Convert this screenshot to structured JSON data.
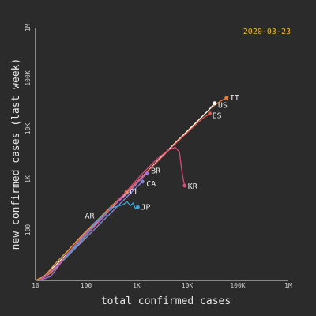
{
  "chart_data": {
    "type": "line",
    "title": "",
    "date": "2020-03-23",
    "xlabel": "total confirmed cases",
    "ylabel": "new confirmed cases (last week)",
    "x_scale": "log",
    "y_scale": "log",
    "xlim": [
      10,
      1000000
    ],
    "ylim": [
      10,
      1000000
    ],
    "x_ticks": [
      {
        "value": 10,
        "label": "10"
      },
      {
        "value": 100,
        "label": "100"
      },
      {
        "value": 1000,
        "label": "1K"
      },
      {
        "value": 10000,
        "label": "10K"
      },
      {
        "value": 100000,
        "label": "100K"
      },
      {
        "value": 1000000,
        "label": "1M"
      }
    ],
    "y_ticks": [
      {
        "value": 100,
        "label": "100"
      },
      {
        "value": 1000,
        "label": "1K"
      },
      {
        "value": 10000,
        "label": "10K"
      },
      {
        "value": 100000,
        "label": "100K"
      },
      {
        "value": 1000000,
        "label": "1M"
      }
    ],
    "grid": false,
    "series": [
      {
        "name": "IT",
        "color": "#e67e3a",
        "x": [
          12,
          20,
          40,
          80,
          150,
          300,
          650,
          1700,
          3000,
          6000,
          10000,
          18000,
          30000,
          45000,
          60000
        ],
        "y": [
          10,
          14,
          28,
          60,
          120,
          260,
          560,
          1500,
          2700,
          5500,
          9000,
          16000,
          26000,
          35000,
          41000
        ]
      },
      {
        "name": "US",
        "color": "#ffffff",
        "x": [
          12,
          25,
          50,
          100,
          200,
          400,
          800,
          1600,
          3200,
          6500,
          13000,
          25000,
          35000
        ],
        "y": [
          10,
          20,
          40,
          85,
          170,
          340,
          700,
          1400,
          2900,
          5800,
          11500,
          22000,
          32000
        ]
      },
      {
        "name": "ES",
        "color": "#e25a4d",
        "x": [
          12,
          20,
          40,
          80,
          160,
          320,
          700,
          1500,
          3000,
          6000,
          12000,
          20000,
          28000
        ],
        "y": [
          10,
          15,
          30,
          65,
          140,
          280,
          620,
          1300,
          2600,
          5200,
          10000,
          16000,
          20000
        ]
      },
      {
        "name": "BR",
        "color": "#a86fd8",
        "x": [
          12,
          20,
          40,
          80,
          160,
          320,
          700,
          1200,
          1600
        ],
        "y": [
          10,
          12,
          30,
          70,
          140,
          280,
          550,
          1000,
          1300
        ]
      },
      {
        "name": "CA",
        "color": "#8a84d6",
        "x": [
          12,
          25,
          50,
          100,
          200,
          400,
          800,
          1300
        ],
        "y": [
          10,
          18,
          35,
          70,
          140,
          280,
          560,
          900
        ]
      },
      {
        "name": "CL",
        "color": "#e6a23c",
        "x": [
          10,
          15,
          25,
          45,
          80,
          150,
          300,
          630
        ],
        "y": [
          10,
          12,
          22,
          40,
          75,
          140,
          280,
          560
        ]
      },
      {
        "name": "AR",
        "color": "#4a8fd6",
        "x": [
          12,
          18,
          30,
          50,
          90,
          150,
          250,
          300
        ],
        "y": [
          10,
          14,
          22,
          40,
          70,
          120,
          200,
          260
        ]
      },
      {
        "name": "JP",
        "color": "#3aa5d8",
        "x": [
          35,
          60,
          100,
          150,
          250,
          350,
          450,
          550,
          650,
          750,
          850,
          950,
          1050
        ],
        "y": [
          25,
          45,
          80,
          140,
          220,
          280,
          300,
          320,
          360,
          300,
          340,
          260,
          280
        ]
      },
      {
        "name": "KR",
        "color": "#d9497a",
        "x": [
          12,
          30,
          60,
          150,
          300,
          600,
          1200,
          2500,
          4200,
          5800,
          7000,
          7800,
          8500,
          8900
        ],
        "y": [
          10,
          22,
          50,
          120,
          260,
          550,
          1200,
          2500,
          3800,
          4300,
          3500,
          1500,
          900,
          750
        ]
      }
    ]
  }
}
